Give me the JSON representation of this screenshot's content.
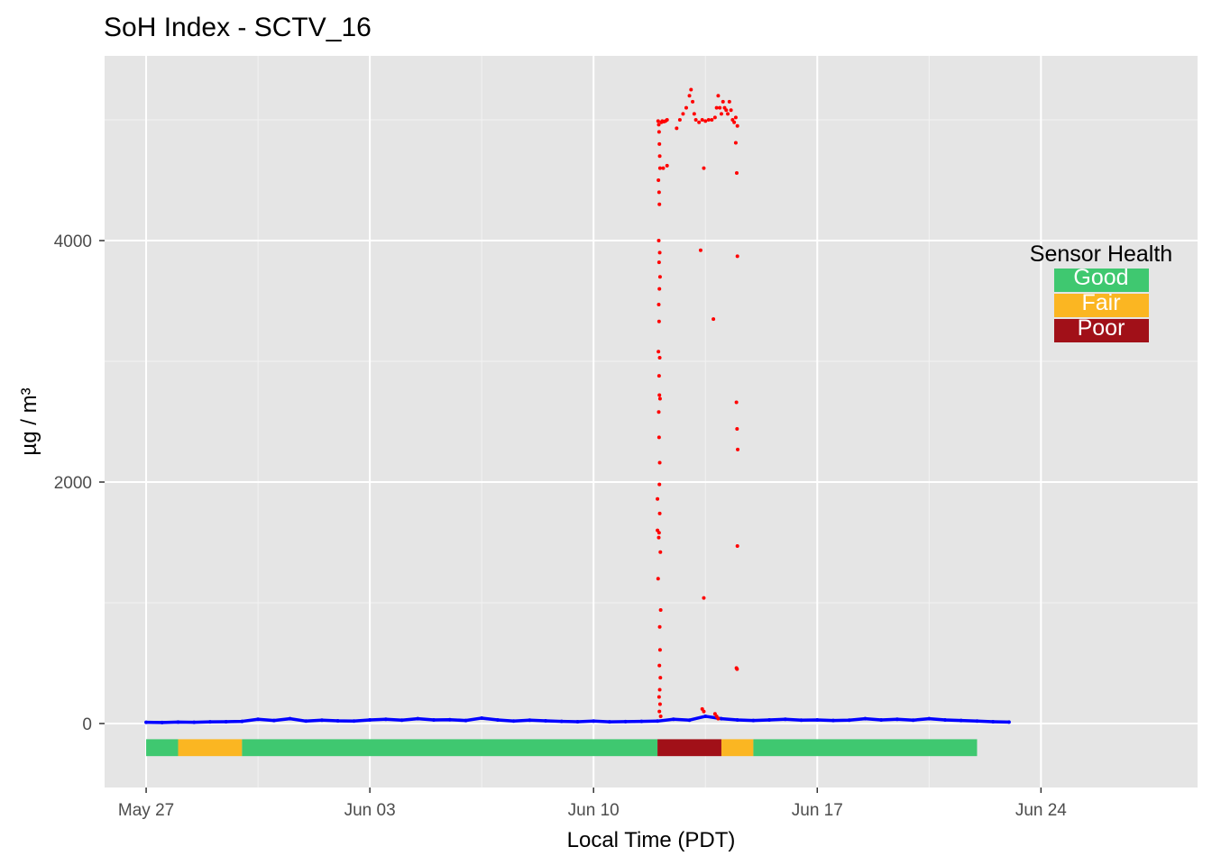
{
  "chart_data": {
    "type": "scatter",
    "title": "SoH Index - SCTV_16",
    "xlabel": "Local Time (PDT)",
    "ylabel": "µg / m³",
    "x_ticks": [
      "May 27",
      "Jun 03",
      "Jun 10",
      "Jun 17",
      "Jun 24"
    ],
    "y_ticks": [
      "0",
      "2000",
      "4000"
    ],
    "x_range_days": [
      -1.3,
      32.9
    ],
    "x_tick_days": [
      0,
      7,
      14,
      21,
      28
    ],
    "ylim": [
      -530,
      5530
    ],
    "y_tick_values": [
      0,
      2000,
      4000
    ],
    "grid": true,
    "background": "#e5e5e5",
    "colors": {
      "pm25_series": "#ff0000",
      "pm25_baseline_series": "#0000ff",
      "good": "#3fc870",
      "fair": "#fbb622",
      "poor": "#a11018"
    },
    "series": [
      {
        "color_ref": "pm25_baseline_series",
        "points": [
          [
            0.0,
            10
          ],
          [
            0.5,
            8
          ],
          [
            1.0,
            12
          ],
          [
            1.5,
            10
          ],
          [
            2.0,
            14
          ],
          [
            2.5,
            15
          ],
          [
            3.0,
            18
          ],
          [
            3.5,
            35
          ],
          [
            4.0,
            25
          ],
          [
            4.5,
            40
          ],
          [
            5.0,
            20
          ],
          [
            5.5,
            28
          ],
          [
            6.0,
            22
          ],
          [
            6.5,
            20
          ],
          [
            7.0,
            30
          ],
          [
            7.5,
            35
          ],
          [
            8.0,
            28
          ],
          [
            8.5,
            40
          ],
          [
            9.0,
            30
          ],
          [
            9.5,
            32
          ],
          [
            10.0,
            25
          ],
          [
            10.5,
            45
          ],
          [
            11.0,
            30
          ],
          [
            11.5,
            20
          ],
          [
            12.0,
            28
          ],
          [
            12.5,
            22
          ],
          [
            13.0,
            18
          ],
          [
            13.5,
            15
          ],
          [
            14.0,
            20
          ],
          [
            14.5,
            14
          ],
          [
            15.0,
            16
          ],
          [
            15.5,
            18
          ],
          [
            16.0,
            20
          ],
          [
            16.5,
            35
          ],
          [
            17.0,
            28
          ],
          [
            17.5,
            60
          ],
          [
            18.0,
            40
          ],
          [
            18.5,
            30
          ],
          [
            19.0,
            25
          ],
          [
            19.5,
            30
          ],
          [
            20.0,
            35
          ],
          [
            20.5,
            28
          ],
          [
            21.0,
            30
          ],
          [
            21.5,
            25
          ],
          [
            22.0,
            28
          ],
          [
            22.5,
            40
          ],
          [
            23.0,
            30
          ],
          [
            23.5,
            35
          ],
          [
            24.0,
            28
          ],
          [
            24.5,
            40
          ],
          [
            25.0,
            30
          ],
          [
            25.5,
            25
          ],
          [
            26.0,
            20
          ],
          [
            26.5,
            15
          ],
          [
            27.0,
            12
          ]
        ]
      },
      {
        "color_ref": "pm25_series",
        "points": [
          [
            16.02,
            4990
          ],
          [
            16.04,
            4960
          ],
          [
            16.05,
            4900
          ],
          [
            16.06,
            4800
          ],
          [
            16.07,
            4700
          ],
          [
            16.08,
            4600
          ],
          [
            16.03,
            4500
          ],
          [
            16.05,
            4400
          ],
          [
            16.06,
            4300
          ],
          [
            16.04,
            4000
          ],
          [
            16.07,
            3900
          ],
          [
            16.05,
            3820
          ],
          [
            16.08,
            3700
          ],
          [
            16.06,
            3600
          ],
          [
            16.04,
            3470
          ],
          [
            16.05,
            3330
          ],
          [
            16.03,
            3080
          ],
          [
            16.07,
            3030
          ],
          [
            16.05,
            2880
          ],
          [
            16.06,
            2720
          ],
          [
            16.08,
            2690
          ],
          [
            16.04,
            2580
          ],
          [
            16.05,
            2370
          ],
          [
            16.07,
            2160
          ],
          [
            16.06,
            1980
          ],
          [
            16.0,
            1860
          ],
          [
            16.07,
            1740
          ],
          [
            16.05,
            1580
          ],
          [
            16.04,
            1540
          ],
          [
            16.09,
            1420
          ],
          [
            16.1,
            940
          ],
          [
            16.07,
            800
          ],
          [
            16.08,
            610
          ],
          [
            16.06,
            480
          ],
          [
            16.09,
            380
          ],
          [
            16.07,
            280
          ],
          [
            16.05,
            220
          ],
          [
            16.08,
            160
          ],
          [
            16.06,
            100
          ],
          [
            16.1,
            60
          ],
          [
            16.12,
            4980
          ],
          [
            16.15,
            4990
          ],
          [
            16.2,
            4985
          ],
          [
            16.25,
            4990
          ],
          [
            16.3,
            5000
          ],
          [
            16.3,
            4620
          ],
          [
            16.18,
            4600
          ],
          [
            16.0,
            1600
          ],
          [
            16.02,
            1200
          ],
          [
            16.6,
            4930
          ],
          [
            16.7,
            5000
          ],
          [
            16.8,
            5050
          ],
          [
            16.9,
            5100
          ],
          [
            17.0,
            5200
          ],
          [
            17.05,
            5250
          ],
          [
            17.1,
            5150
          ],
          [
            17.15,
            5050
          ],
          [
            17.2,
            5000
          ],
          [
            17.3,
            4980
          ],
          [
            17.4,
            5000
          ],
          [
            17.5,
            4990
          ],
          [
            17.6,
            5000
          ],
          [
            17.7,
            5000
          ],
          [
            17.8,
            5020
          ],
          [
            17.85,
            5100
          ],
          [
            17.9,
            5200
          ],
          [
            17.95,
            5100
          ],
          [
            18.0,
            5050
          ],
          [
            18.05,
            5150
          ],
          [
            18.1,
            5100
          ],
          [
            18.15,
            5080
          ],
          [
            18.2,
            5050
          ],
          [
            18.25,
            5150
          ],
          [
            18.3,
            5080
          ],
          [
            18.35,
            5000
          ],
          [
            18.4,
            4980
          ],
          [
            18.45,
            5020
          ],
          [
            18.5,
            4950
          ],
          [
            17.45,
            4600
          ],
          [
            17.35,
            3920
          ],
          [
            17.75,
            3350
          ],
          [
            17.45,
            1040
          ],
          [
            18.45,
            4810
          ],
          [
            18.48,
            4560
          ],
          [
            18.5,
            3870
          ],
          [
            18.47,
            2660
          ],
          [
            18.49,
            2440
          ],
          [
            18.51,
            2270
          ],
          [
            18.5,
            1470
          ],
          [
            18.47,
            460
          ],
          [
            18.49,
            450
          ],
          [
            17.4,
            120
          ],
          [
            17.45,
            100
          ],
          [
            17.8,
            80
          ],
          [
            17.85,
            60
          ],
          [
            17.9,
            40
          ]
        ]
      }
    ],
    "soh_bands": [
      {
        "start": 0.0,
        "end": 1.0,
        "status": "good"
      },
      {
        "start": 1.0,
        "end": 3.0,
        "status": "fair"
      },
      {
        "start": 3.0,
        "end": 16.0,
        "status": "good"
      },
      {
        "start": 16.0,
        "end": 18.0,
        "status": "poor"
      },
      {
        "start": 18.0,
        "end": 19.0,
        "status": "fair"
      },
      {
        "start": 19.0,
        "end": 26.0,
        "status": "good"
      }
    ],
    "legend": {
      "title": "Sensor Health",
      "placement": "right",
      "items": [
        {
          "label": "Good",
          "color_ref": "good"
        },
        {
          "label": "Fair",
          "color_ref": "fair"
        },
        {
          "label": "Poor",
          "color_ref": "poor"
        }
      ]
    }
  }
}
